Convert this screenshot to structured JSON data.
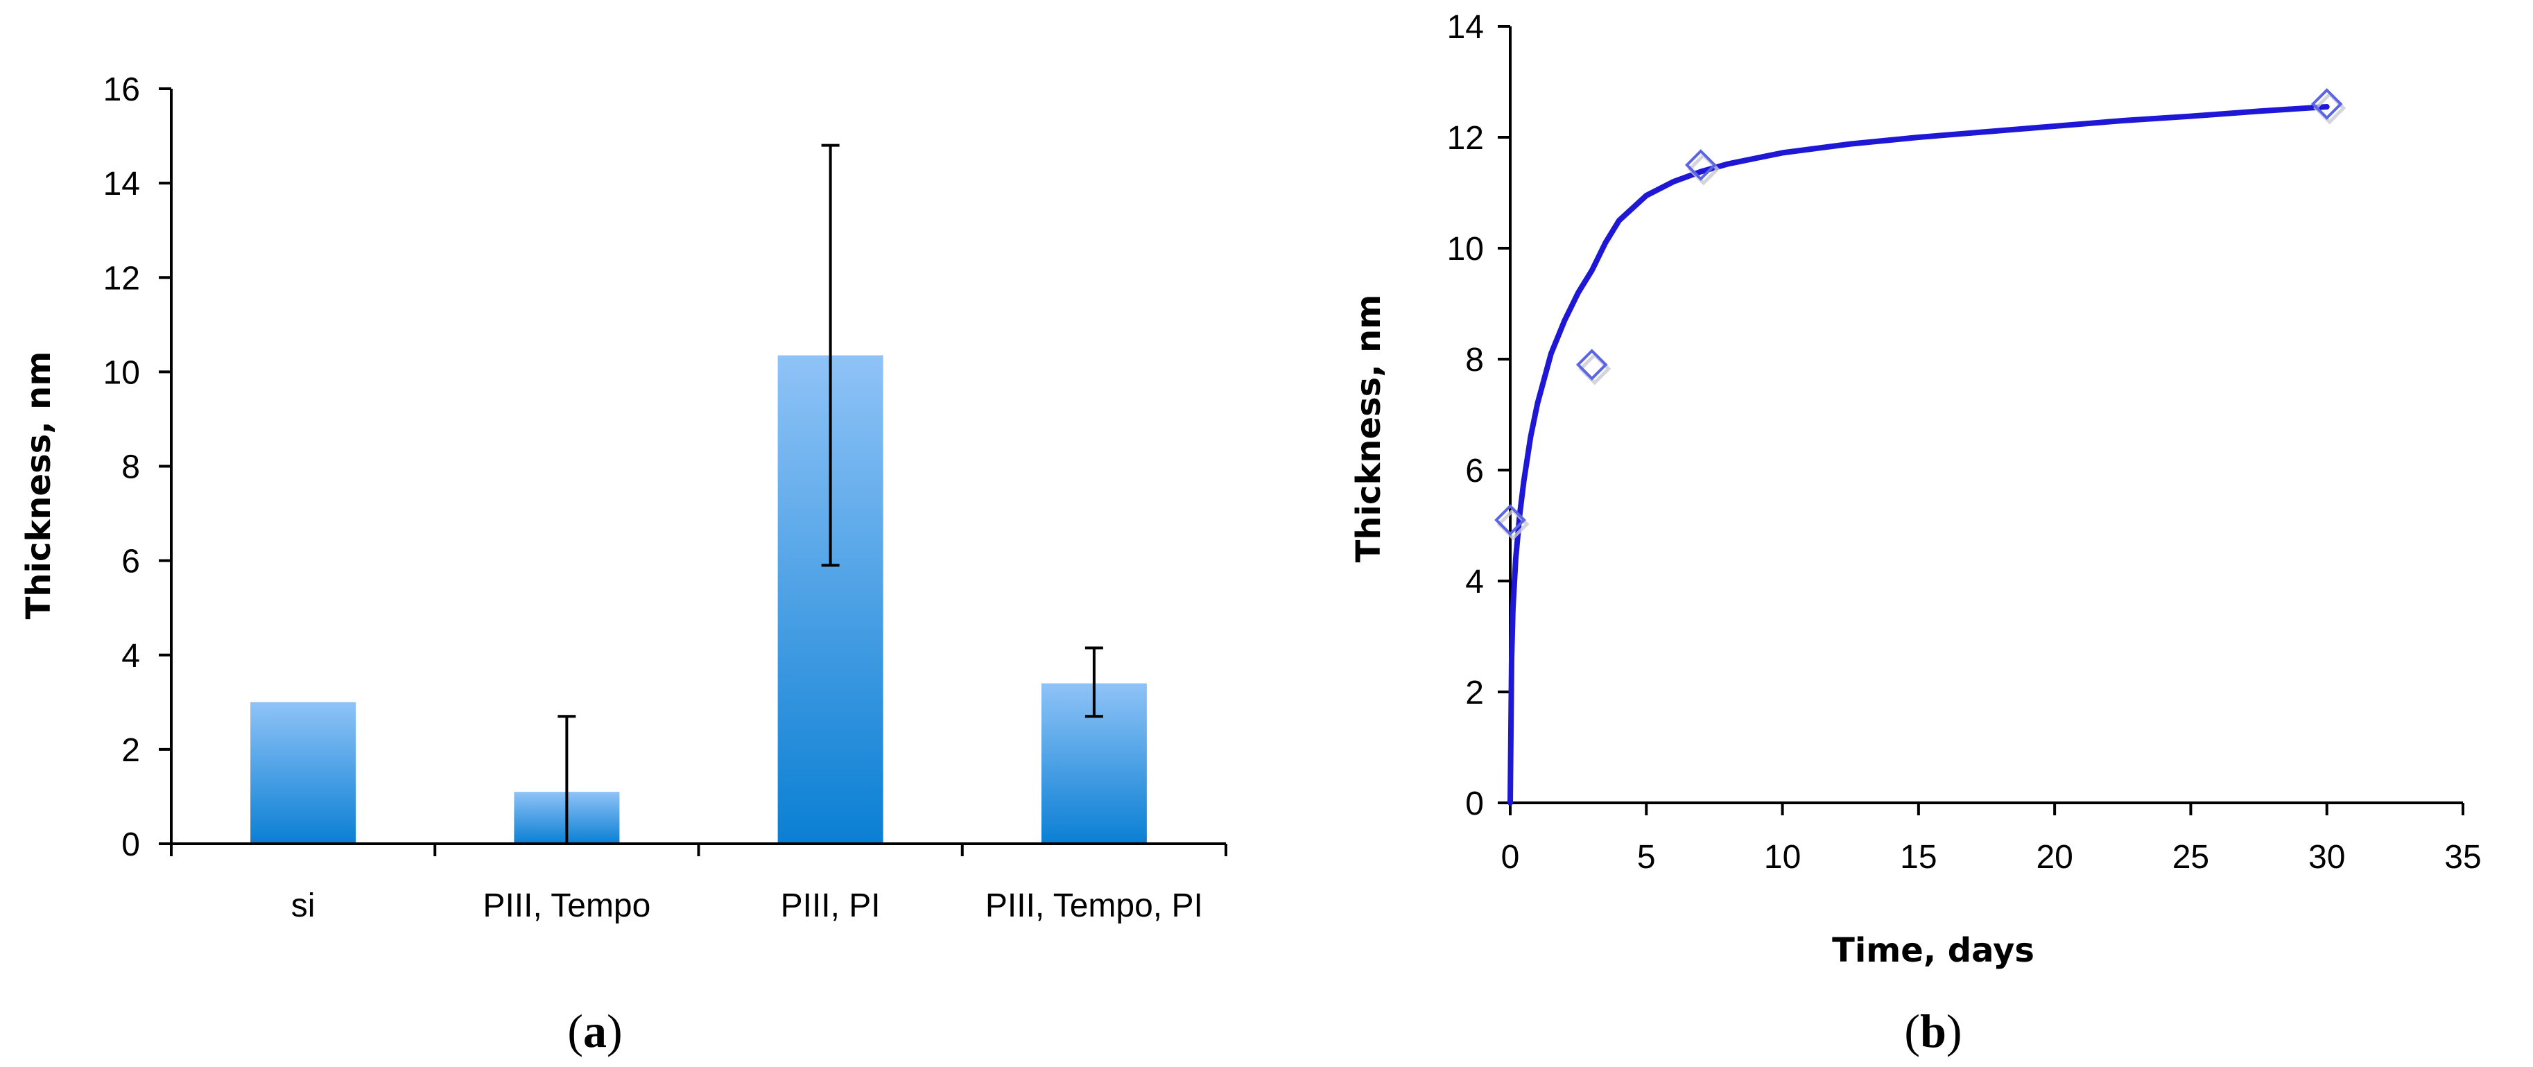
{
  "chart_data": [
    {
      "type": "bar",
      "panel_label": "a",
      "title": "",
      "xlabel": "",
      "ylabel": "Thickness, nm",
      "categories": [
        "si",
        "PIII, Tempo",
        "PIII, PI",
        "PIII, Tempo, PI"
      ],
      "values": [
        3.0,
        1.1,
        10.35,
        3.4
      ],
      "error_low": [
        null,
        0.0,
        5.9,
        2.7
      ],
      "error_high": [
        null,
        2.7,
        14.8,
        4.15
      ],
      "ylim": [
        0,
        16
      ],
      "yticks": [
        0,
        2,
        4,
        6,
        8,
        10,
        12,
        14,
        16
      ],
      "ytick_labels": [
        "0",
        "2",
        "4",
        "6",
        "8",
        "10",
        "12",
        "14",
        "16"
      ],
      "colors": {
        "bar_top": "#8fc3f7",
        "bar_bottom": "#0a7fd3",
        "error_bar": "#000000"
      }
    },
    {
      "type": "scatter",
      "panel_label": "b",
      "title": "",
      "xlabel": "Time, days",
      "ylabel": "Thickness, nm",
      "x": [
        0,
        3,
        7,
        30
      ],
      "y": [
        5.1,
        7.9,
        11.5,
        12.6
      ],
      "fit_curve": {
        "type": "line",
        "x": [
          0,
          0.05,
          0.1,
          0.2,
          0.35,
          0.5,
          0.75,
          1.0,
          1.5,
          2.0,
          2.5,
          3.0,
          3.5,
          4.0,
          5.0,
          6.0,
          7.0,
          8.0,
          10.0,
          12.5,
          15.0,
          17.5,
          20.0,
          22.5,
          25.0,
          27.5,
          30.0
        ],
        "y": [
          0,
          2.6,
          3.5,
          4.4,
          5.2,
          5.8,
          6.6,
          7.2,
          8.1,
          8.7,
          9.2,
          9.6,
          10.1,
          10.5,
          10.95,
          11.2,
          11.38,
          11.52,
          11.72,
          11.88,
          12.0,
          12.1,
          12.2,
          12.3,
          12.38,
          12.47,
          12.55
        ]
      },
      "xlim": [
        0,
        35
      ],
      "ylim": [
        0,
        14
      ],
      "xticks": [
        0,
        5,
        10,
        15,
        20,
        25,
        30,
        35
      ],
      "xtick_labels": [
        "0",
        "5",
        "10",
        "15",
        "20",
        "25",
        "30",
        "35"
      ],
      "yticks": [
        0,
        2,
        4,
        6,
        8,
        10,
        12,
        14
      ],
      "ytick_labels": [
        "0",
        "2",
        "4",
        "6",
        "8",
        "10",
        "12",
        "14"
      ],
      "colors": {
        "marker": "#5b64e6",
        "fit_line": "#1e17d6"
      }
    }
  ]
}
